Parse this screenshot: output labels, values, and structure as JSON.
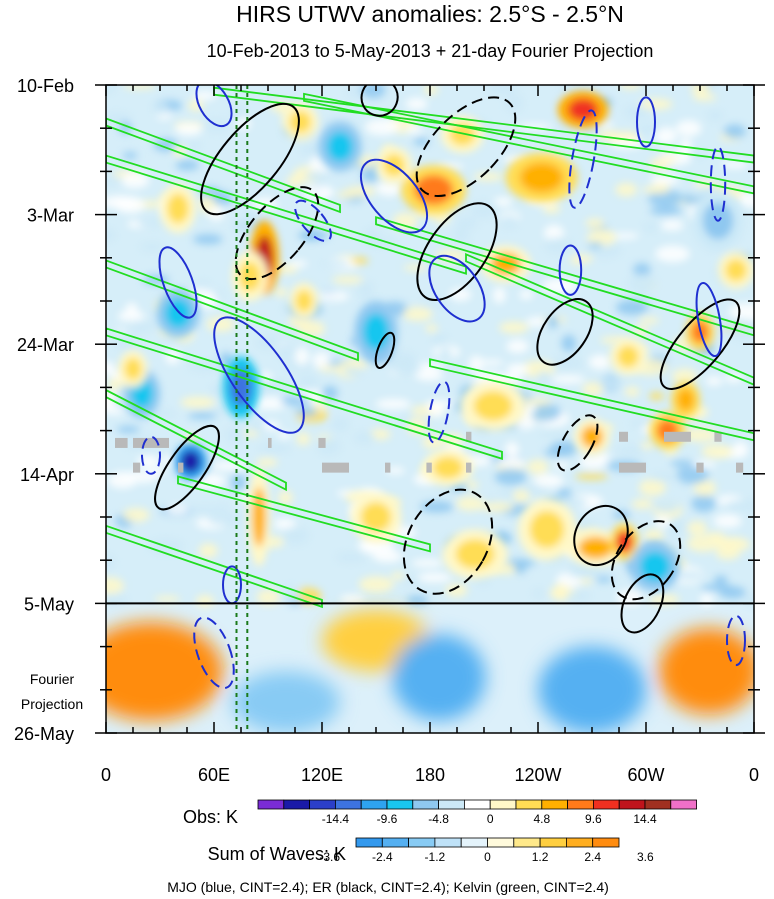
{
  "chart_data": {
    "type": "heatmap",
    "title": "HIRS UTWV anomalies: 2.5°S - 2.5°N",
    "subtitle": "10-Feb-2013 to 5-May-2013 + 21-day Fourier Projection",
    "x_axis": {
      "ticks": [
        {
          "label": "0",
          "lon": 0
        },
        {
          "label": "60E",
          "lon": 60
        },
        {
          "label": "120E",
          "lon": 120
        },
        {
          "label": "180",
          "lon": 180
        },
        {
          "label": "120W",
          "lon": 240
        },
        {
          "label": "60W",
          "lon": 300
        },
        {
          "label": "0",
          "lon": 360
        }
      ],
      "range": [
        0,
        360
      ]
    },
    "y_axis": {
      "ticks": [
        {
          "label": "10-Feb",
          "day": 0
        },
        {
          "label": "3-Mar",
          "day": 21
        },
        {
          "label": "24-Mar",
          "day": 42
        },
        {
          "label": "14-Apr",
          "day": 63
        },
        {
          "label": "5-May",
          "day": 84
        },
        {
          "label": "26-May",
          "day": 105
        }
      ],
      "range_days": [
        0,
        105
      ],
      "observation_end_day": 84,
      "projection_label": [
        "Fourier",
        "Projection"
      ]
    },
    "reference_longitudes": [
      72.5,
      78.5
    ],
    "obs_colorbar": {
      "label": "Obs: K",
      "tick_labels": [
        "-14.4",
        "-9.6",
        "-4.8",
        "0",
        "4.8",
        "9.6",
        "14.4"
      ],
      "colors": [
        "#7a2cd6",
        "#1a1aa8",
        "#2b3fc9",
        "#3d73e0",
        "#2ea3f0",
        "#19c6ef",
        "#8fc8f0",
        "#cce9f7",
        "#ffffff",
        "#fff8c8",
        "#ffdd55",
        "#ffb000",
        "#ff7a1a",
        "#f03020",
        "#c0141c",
        "#a03020",
        "#f070c8"
      ]
    },
    "waves_colorbar": {
      "label": "Sum of Waves: K",
      "tick_labels": [
        "-3.6",
        "-2.4",
        "-1.2",
        "0",
        "1.2",
        "2.4",
        "3.6"
      ],
      "colors": [
        "#3399ee",
        "#55b0f2",
        "#88cbf4",
        "#bfe2f8",
        "#e4f3fb",
        "#fffadc",
        "#ffe98a",
        "#ffcf40",
        "#ffae20",
        "#ff8c10"
      ]
    },
    "wave_legend": "MJO (blue, CINT=2.4); ER (black, CINT=2.4); Kelvin (green, CINT=2.4)",
    "wave_colors": {
      "MJO": "#1f2fd0",
      "ER": "#000000",
      "Kelvin": "#22dd22"
    },
    "anomaly_blobs": [
      {
        "lon": 265,
        "day": 4,
        "val": 14,
        "rlon": 14,
        "rday": 3
      },
      {
        "lon": 198,
        "day": 8,
        "val": 7,
        "rlon": 12,
        "rday": 3
      },
      {
        "lon": 182,
        "day": 17,
        "val": 11,
        "rlon": 18,
        "rday": 4
      },
      {
        "lon": 242,
        "day": 15,
        "val": 9,
        "rlon": 20,
        "rday": 4
      },
      {
        "lon": 160,
        "day": 13,
        "val": 6,
        "rlon": 10,
        "rday": 3
      },
      {
        "lon": 88,
        "day": 28,
        "val": 15,
        "rlon": 8,
        "rday": 6
      },
      {
        "lon": 80,
        "day": 31,
        "val": 7,
        "rlon": 10,
        "rday": 4
      },
      {
        "lon": 110,
        "day": 35,
        "val": 6,
        "rlon": 8,
        "rday": 3
      },
      {
        "lon": 222,
        "day": 29,
        "val": 8,
        "rlon": 14,
        "rday": 3
      },
      {
        "lon": 330,
        "day": 40,
        "val": 10,
        "rlon": 8,
        "rday": 3
      },
      {
        "lon": 322,
        "day": 51,
        "val": 9,
        "rlon": 8,
        "rday": 3
      },
      {
        "lon": 312,
        "day": 56,
        "val": 10,
        "rlon": 10,
        "rday": 3
      },
      {
        "lon": 270,
        "day": 57,
        "val": 8,
        "rlon": 10,
        "rday": 3
      },
      {
        "lon": 290,
        "day": 44,
        "val": 6,
        "rlon": 10,
        "rday": 3
      },
      {
        "lon": 215,
        "day": 52,
        "val": 6,
        "rlon": 18,
        "rday": 4
      },
      {
        "lon": 190,
        "day": 62,
        "val": 6,
        "rlon": 14,
        "rday": 3
      },
      {
        "lon": 245,
        "day": 72,
        "val": 7,
        "rlon": 16,
        "rday": 5
      },
      {
        "lon": 272,
        "day": 75,
        "val": 8,
        "rlon": 16,
        "rday": 3
      },
      {
        "lon": 288,
        "day": 74,
        "val": 12,
        "rlon": 8,
        "rday": 3
      },
      {
        "lon": 205,
        "day": 76,
        "val": 7,
        "rlon": 18,
        "rday": 4
      },
      {
        "lon": 85,
        "day": 70,
        "val": 8,
        "rlon": 6,
        "rday": 8
      },
      {
        "lon": 40,
        "day": 37,
        "val": -5,
        "rlon": 12,
        "rday": 4
      },
      {
        "lon": 75,
        "day": 49,
        "val": -10,
        "rlon": 10,
        "rday": 5
      },
      {
        "lon": 47,
        "day": 61,
        "val": -15,
        "rlon": 9,
        "rday": 3
      },
      {
        "lon": 20,
        "day": 50,
        "val": -5,
        "rlon": 10,
        "rday": 4
      },
      {
        "lon": 130,
        "day": 10,
        "val": -5,
        "rlon": 12,
        "rday": 4
      },
      {
        "lon": 150,
        "day": 40,
        "val": -5,
        "rlon": 12,
        "rday": 5
      },
      {
        "lon": 305,
        "day": 78,
        "val": -5,
        "rlon": 14,
        "rday": 4
      },
      {
        "lon": 340,
        "day": 22,
        "val": -4,
        "rlon": 14,
        "rday": 5
      },
      {
        "lon": 108,
        "day": 6,
        "val": 6,
        "rlon": 10,
        "rday": 3
      },
      {
        "lon": 350,
        "day": 30,
        "val": 6,
        "rlon": 10,
        "rday": 3
      },
      {
        "lon": 15,
        "day": 46,
        "val": 7,
        "rlon": 8,
        "rday": 3
      },
      {
        "lon": 150,
        "day": 70,
        "val": 5,
        "rlon": 14,
        "rday": 4
      },
      {
        "lon": 40,
        "day": 20,
        "val": 5,
        "rlon": 10,
        "rday": 4
      }
    ],
    "projection_blobs": [
      {
        "lon": 25,
        "day": 95,
        "val": 3.2,
        "rlon": 40,
        "rday": 8
      },
      {
        "lon": 335,
        "day": 95,
        "val": 2.8,
        "rlon": 28,
        "rday": 7
      },
      {
        "lon": 150,
        "day": 90,
        "val": 1.5,
        "rlon": 30,
        "rday": 5
      },
      {
        "lon": 185,
        "day": 96,
        "val": -2.2,
        "rlon": 26,
        "rday": 7
      },
      {
        "lon": 270,
        "day": 98,
        "val": -2.0,
        "rlon": 30,
        "rday": 7
      },
      {
        "lon": 100,
        "day": 100,
        "val": -1.5,
        "rlon": 30,
        "rday": 5
      }
    ],
    "missing_segments": [
      {
        "lon0": 5,
        "lon1": 12,
        "day": 58
      },
      {
        "lon0": 15,
        "lon1": 35,
        "day": 58
      },
      {
        "lon0": 15,
        "lon1": 19,
        "day": 62
      },
      {
        "lon0": 40,
        "lon1": 43,
        "day": 62
      },
      {
        "lon0": 90,
        "lon1": 92,
        "day": 58
      },
      {
        "lon0": 118,
        "lon1": 122,
        "day": 58
      },
      {
        "lon0": 120,
        "lon1": 135,
        "day": 62
      },
      {
        "lon0": 155,
        "lon1": 158,
        "day": 62
      },
      {
        "lon0": 178,
        "lon1": 181,
        "day": 62
      },
      {
        "lon0": 200,
        "lon1": 203,
        "day": 57
      },
      {
        "lon0": 200,
        "lon1": 203,
        "day": 62
      },
      {
        "lon0": 285,
        "lon1": 290,
        "day": 57
      },
      {
        "lon0": 285,
        "lon1": 300,
        "day": 62
      },
      {
        "lon0": 310,
        "lon1": 325,
        "day": 57
      },
      {
        "lon0": 328,
        "lon1": 332,
        "day": 62
      },
      {
        "lon0": 338,
        "lon1": 342,
        "day": 57
      },
      {
        "lon0": 350,
        "lon1": 354,
        "day": 62
      }
    ],
    "mjo_contours": [
      {
        "lon": 40,
        "day": 32,
        "rlon": 8,
        "rday": 6,
        "angle": -20,
        "dashed": false
      },
      {
        "lon": 85,
        "day": 47,
        "rlon": 15,
        "rday": 11,
        "angle": -35,
        "dashed": false
      },
      {
        "lon": 160,
        "day": 18,
        "rlon": 13,
        "rday": 7,
        "angle": -40,
        "dashed": false
      },
      {
        "lon": 195,
        "day": 33,
        "rlon": 12,
        "rday": 6,
        "angle": -35,
        "dashed": false
      },
      {
        "lon": 258,
        "day": 30,
        "rlon": 6,
        "rday": 4,
        "angle": 0,
        "dashed": false
      },
      {
        "lon": 335,
        "day": 38,
        "rlon": 6,
        "rday": 6,
        "angle": -10,
        "dashed": false
      },
      {
        "lon": 300,
        "day": 6,
        "rlon": 5,
        "rday": 4,
        "angle": 0,
        "dashed": false
      },
      {
        "lon": 70,
        "day": 81,
        "rlon": 5,
        "rday": 3,
        "angle": 0,
        "dashed": false
      },
      {
        "lon": 60,
        "day": 3,
        "rlon": 8,
        "rday": 4,
        "angle": -30,
        "dashed": false
      },
      {
        "lon": 265,
        "day": 12,
        "rlon": 6,
        "rday": 8,
        "angle": 10,
        "dashed": true
      },
      {
        "lon": 115,
        "day": 22,
        "rlon": 6,
        "rday": 4,
        "angle": -40,
        "dashed": true
      },
      {
        "lon": 185,
        "day": 53,
        "rlon": 5,
        "rday": 5,
        "angle": 10,
        "dashed": true
      },
      {
        "lon": 25,
        "day": 60,
        "rlon": 5,
        "rday": 3,
        "angle": 0,
        "dashed": true
      },
      {
        "lon": 60,
        "day": 92,
        "rlon": 9,
        "rday": 6,
        "angle": -20,
        "dashed": true
      },
      {
        "lon": 350,
        "day": 90,
        "rlon": 5,
        "rday": 4,
        "angle": 0,
        "dashed": true
      },
      {
        "lon": 340,
        "day": 16,
        "rlon": 4,
        "rday": 6,
        "angle": 0,
        "dashed": true
      }
    ],
    "er_contours": [
      {
        "lon": 80,
        "day": 12,
        "rlon": 16,
        "rday": 11,
        "angle": 40,
        "dashed": false
      },
      {
        "lon": 195,
        "day": 27,
        "rlon": 16,
        "rday": 9,
        "angle": 35,
        "dashed": false
      },
      {
        "lon": 255,
        "day": 40,
        "rlon": 12,
        "rday": 6,
        "angle": 35,
        "dashed": false
      },
      {
        "lon": 330,
        "day": 42,
        "rlon": 12,
        "rday": 9,
        "angle": 40,
        "dashed": false
      },
      {
        "lon": 45,
        "day": 62,
        "rlon": 10,
        "rday": 8,
        "angle": 35,
        "dashed": false
      },
      {
        "lon": 275,
        "day": 73,
        "rlon": 14,
        "rday": 5,
        "angle": 30,
        "dashed": false
      },
      {
        "lon": 298,
        "day": 84,
        "rlon": 10,
        "rday": 5,
        "angle": 25,
        "dashed": false
      },
      {
        "lon": 155,
        "day": 43,
        "rlon": 4,
        "rday": 3,
        "angle": 20,
        "dashed": false
      },
      {
        "lon": 152,
        "day": 2,
        "rlon": 10,
        "rday": 3,
        "angle": 20,
        "dashed": false
      },
      {
        "lon": 95,
        "day": 24,
        "rlon": 15,
        "rday": 9,
        "angle": 40,
        "dashed": true
      },
      {
        "lon": 200,
        "day": 10,
        "rlon": 18,
        "rday": 10,
        "angle": 45,
        "dashed": true
      },
      {
        "lon": 190,
        "day": 74,
        "rlon": 22,
        "rday": 9,
        "angle": 30,
        "dashed": true
      },
      {
        "lon": 262,
        "day": 58,
        "rlon": 8,
        "rday": 5,
        "angle": 30,
        "dashed": true
      },
      {
        "lon": 300,
        "day": 77,
        "rlon": 16,
        "rday": 7,
        "angle": 35,
        "dashed": true
      }
    ],
    "kelvin_bands": [
      {
        "lon0": 0,
        "day0": 6,
        "lon1": 130,
        "day1": 20
      },
      {
        "lon0": 0,
        "day0": 12,
        "lon1": 200,
        "day1": 30
      },
      {
        "lon0": 0,
        "day0": 29,
        "lon1": 140,
        "day1": 44
      },
      {
        "lon0": 0,
        "day0": 40,
        "lon1": 220,
        "day1": 60
      },
      {
        "lon0": 0,
        "day0": 50,
        "lon1": 100,
        "day1": 65
      },
      {
        "lon0": 60,
        "day0": 1,
        "lon1": 360,
        "day1": 12
      },
      {
        "lon0": 110,
        "day0": 2,
        "lon1": 360,
        "day1": 17
      },
      {
        "lon0": 150,
        "day0": 22,
        "lon1": 360,
        "day1": 40
      },
      {
        "lon0": 200,
        "day0": 28,
        "lon1": 360,
        "day1": 48
      },
      {
        "lon0": 180,
        "day0": 45,
        "lon1": 360,
        "day1": 57
      },
      {
        "lon0": 40,
        "day0": 64,
        "lon1": 180,
        "day1": 75
      },
      {
        "lon0": 0,
        "day0": 72,
        "lon1": 120,
        "day1": 84
      }
    ]
  }
}
